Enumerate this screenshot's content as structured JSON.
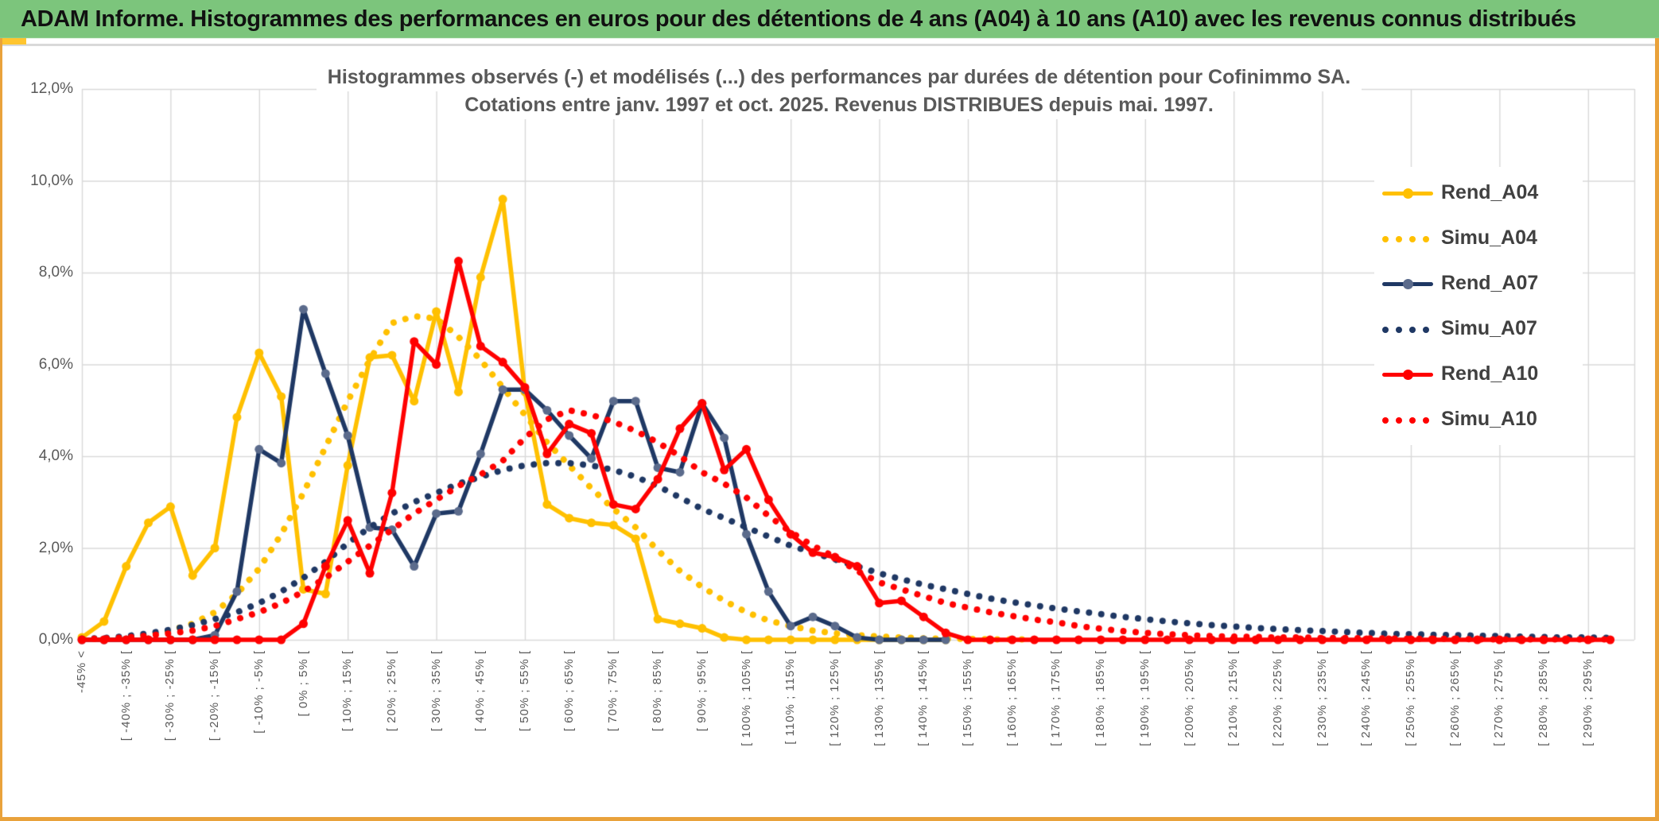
{
  "header": {
    "title": "ADAM Informe. Histogrammes des performances en euros pour des détentions de 4 ans (A04) à 10 ans (A10) avec les revenus connus distribués"
  },
  "chart": {
    "title_line1": "Histogrammes observés (-) et modélisés (...) des performances par durées de détention pour Cofinimmo SA.",
    "title_line2": "Cotations entre janv. 1997 et oct. 2025. Revenus DISTRIBUES depuis mai. 1997."
  },
  "colors": {
    "gold": "#FFC000",
    "navy": "#1F3864",
    "navy_marker": "#5B6B8C",
    "red": "#FF0000",
    "grid": "#D9D9D9",
    "axis_text": "#595959",
    "legend_text": "#404040",
    "header_green": "#7CC57C",
    "frame_gold": "#E9A23B"
  },
  "y_axis": {
    "labels": [
      "12,0%",
      "10,0%",
      "8,0%",
      "6,0%",
      "4,0%",
      "2,0%",
      "0,0%"
    ],
    "min": 0,
    "max": 12,
    "step": 2
  },
  "x_axis": {
    "labels": [
      "-45% <",
      "[ -40% ; -35% [",
      "[ -30% ; -25% [",
      "[ -20% ; -15% [",
      "[ -10% ; -5% [",
      "[ 0% ; 5% [",
      "[ 10% ; 15% [",
      "[ 20% ; 25% [",
      "[ 30% ; 35% [",
      "[ 40% ; 45% [",
      "[ 50% ; 55% [",
      "[ 60% ; 65% [",
      "[ 70% ; 75% [",
      "[ 80% ; 85% [",
      "[ 90% ; 95% [",
      "[ 100% ; 105% [",
      "[ 110% ; 115% [",
      "[ 120% ; 125% [",
      "[ 130% ; 135% [",
      "[ 140% ; 145% [",
      "[ 150% ; 155% [",
      "[ 160% ; 165% [",
      "[ 170% ; 175% [",
      "[ 180% ; 185% [",
      "[ 190% ; 195% [",
      "[ 200% ; 205% [",
      "[ 210% ; 215% [",
      "[ 220% ; 225% [",
      "[ 230% ; 235% [",
      "[ 240% ; 245% [",
      "[ 250% ; 255% [",
      "[ 260% ; 265% [",
      "[ 270% ; 275% [",
      "[ 280% ; 285% [",
      "[ 290% ; 295% ["
    ],
    "note": "labels shown for every other 5%-wide bin"
  },
  "chart_data": {
    "type": "line",
    "bin_width_pct": 5,
    "bins_total": 70,
    "first_bin": "-45% <",
    "last_bin": "[ 295% ; 300% [",
    "ylim": [
      0,
      12
    ],
    "grid": "on",
    "legend_position": "right",
    "series": [
      {
        "name": "Rend_A04",
        "color": "#FFC000",
        "marker_color": "#FFC000",
        "style": "solid",
        "values": [
          0.05,
          0.4,
          1.6,
          2.55,
          2.9,
          1.4,
          2.0,
          4.85,
          6.25,
          5.3,
          1.1,
          1.0,
          3.8,
          6.15,
          6.2,
          5.2,
          7.15,
          5.4,
          7.9,
          9.6,
          5.4,
          2.95,
          2.65,
          2.55,
          2.5,
          2.2,
          0.45,
          0.35,
          0.25,
          0.05,
          0,
          0,
          0,
          0,
          0,
          0,
          0,
          0,
          0,
          0,
          null,
          null,
          null,
          null,
          null,
          null,
          null,
          null,
          null,
          null,
          null,
          null,
          null,
          null,
          null,
          null,
          null,
          null,
          null,
          null,
          null,
          null,
          null,
          null,
          null,
          null,
          null,
          null,
          null,
          null
        ]
      },
      {
        "name": "Simu_A04",
        "color": "#FFC000",
        "style": "dotted",
        "values": [
          0.01,
          0.02,
          0.05,
          0.1,
          0.2,
          0.35,
          0.6,
          1.0,
          1.55,
          2.3,
          3.2,
          4.2,
          5.2,
          6.1,
          6.9,
          7.05,
          7.0,
          6.6,
          6.1,
          5.5,
          4.9,
          4.3,
          3.8,
          3.3,
          2.85,
          2.45,
          1.95,
          1.5,
          1.15,
          0.85,
          0.6,
          0.42,
          0.3,
          0.2,
          0.14,
          0.1,
          0.07,
          0.05,
          0.03,
          0.02,
          0.02,
          0.01,
          0.01,
          0.01,
          null,
          null,
          null,
          null,
          null,
          null,
          null,
          null,
          null,
          null,
          null,
          null,
          null,
          null,
          null,
          null,
          null,
          null,
          null,
          null,
          null,
          null,
          null,
          null,
          null,
          null
        ]
      },
      {
        "name": "Rend_A07",
        "color": "#1F3864",
        "marker_color": "#5B6B8C",
        "style": "solid",
        "values": [
          0,
          0,
          0,
          0,
          0,
          0,
          0.1,
          1.05,
          4.15,
          3.85,
          7.2,
          5.8,
          4.45,
          2.45,
          2.4,
          1.6,
          2.75,
          2.8,
          4.05,
          5.45,
          5.45,
          5.0,
          4.45,
          3.95,
          5.2,
          5.2,
          3.75,
          3.65,
          5.15,
          4.4,
          2.3,
          1.05,
          0.3,
          0.5,
          0.3,
          0.05,
          0,
          0,
          0,
          0,
          null,
          null,
          null,
          null,
          null,
          null,
          null,
          null,
          null,
          null,
          null,
          null,
          null,
          null,
          null,
          null,
          null,
          null,
          null,
          null,
          null,
          null,
          null,
          null,
          null,
          null,
          null,
          null,
          null,
          null
        ]
      },
      {
        "name": "Simu_A07",
        "color": "#1F3864",
        "style": "dotted",
        "values": [
          0.02,
          0.04,
          0.08,
          0.14,
          0.22,
          0.32,
          0.45,
          0.6,
          0.8,
          1.05,
          1.35,
          1.7,
          2.1,
          2.45,
          2.75,
          3.0,
          3.2,
          3.4,
          3.55,
          3.7,
          3.8,
          3.85,
          3.85,
          3.8,
          3.7,
          3.55,
          3.35,
          3.1,
          2.85,
          2.65,
          2.45,
          2.25,
          2.05,
          1.9,
          1.75,
          1.6,
          1.45,
          1.32,
          1.2,
          1.1,
          1.0,
          0.9,
          0.82,
          0.75,
          0.68,
          0.62,
          0.56,
          0.5,
          0.45,
          0.4,
          0.36,
          0.32,
          0.29,
          0.26,
          0.23,
          0.21,
          0.19,
          0.17,
          0.15,
          0.13,
          0.12,
          0.11,
          0.1,
          0.09,
          0.08,
          0.07,
          0.06,
          0.05,
          0.05,
          0.04
        ]
      },
      {
        "name": "Rend_A10",
        "color": "#FF0000",
        "marker_color": "#FF0000",
        "style": "solid",
        "values": [
          0,
          0,
          0,
          0,
          0,
          0,
          0,
          0,
          0,
          0,
          0.35,
          1.6,
          2.6,
          1.45,
          3.2,
          6.5,
          6.0,
          8.25,
          6.4,
          6.05,
          5.5,
          4.05,
          4.7,
          4.5,
          2.95,
          2.85,
          3.5,
          4.6,
          5.15,
          3.7,
          4.15,
          3.05,
          2.3,
          1.9,
          1.8,
          1.6,
          0.8,
          0.85,
          0.5,
          0.15,
          0,
          0,
          0,
          0,
          0,
          0,
          0,
          0,
          0,
          0,
          0,
          0,
          0,
          0,
          0,
          0,
          0,
          0,
          0,
          0,
          0,
          0,
          0,
          0,
          0,
          0,
          0,
          0,
          0,
          0
        ]
      },
      {
        "name": "Simu_A10",
        "color": "#FF0000",
        "style": "dotted",
        "values": [
          0.01,
          0.03,
          0.05,
          0.09,
          0.14,
          0.2,
          0.3,
          0.45,
          0.6,
          0.8,
          1.05,
          1.35,
          1.7,
          2.05,
          2.4,
          2.75,
          3.05,
          3.35,
          3.6,
          3.9,
          4.4,
          4.8,
          5.0,
          4.9,
          4.75,
          4.55,
          4.3,
          4.0,
          3.65,
          3.4,
          3.1,
          2.7,
          2.35,
          2.05,
          1.8,
          1.5,
          1.25,
          1.1,
          0.95,
          0.8,
          0.7,
          0.6,
          0.52,
          0.44,
          0.38,
          0.3,
          0.24,
          0.19,
          0.15,
          0.12,
          0.1,
          0.08,
          0.07,
          0.06,
          0.05,
          0.05,
          0.04,
          0.04,
          0.03,
          0.03,
          0.02,
          0.02,
          0.02,
          0.01,
          0.01,
          0.01,
          0.01,
          0.01,
          0.01,
          0.01
        ]
      }
    ]
  },
  "legend": [
    {
      "label": "Rend_A04",
      "style": "solid",
      "color": "#FFC000",
      "marker_color": "#FFC000"
    },
    {
      "label": "Simu_A04",
      "style": "dotted",
      "color": "#FFC000"
    },
    {
      "label": "Rend_A07",
      "style": "solid",
      "color": "#1F3864",
      "marker_color": "#5B6B8C"
    },
    {
      "label": "Simu_A07",
      "style": "dotted",
      "color": "#1F3864"
    },
    {
      "label": "Rend_A10",
      "style": "solid",
      "color": "#FF0000",
      "marker_color": "#FF0000"
    },
    {
      "label": "Simu_A10",
      "style": "dotted",
      "color": "#FF0000"
    }
  ]
}
